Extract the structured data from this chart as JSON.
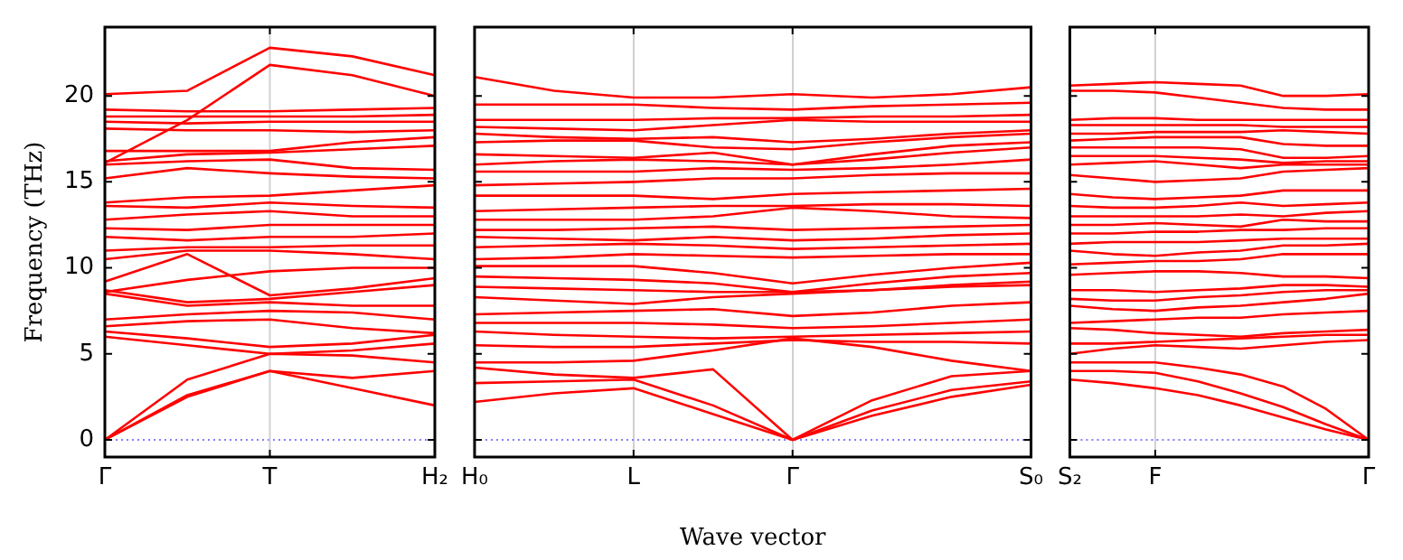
{
  "chart_data": [
    {
      "type": "line",
      "ylabel": "Frequency (THz)",
      "categories": [
        "Γ",
        null,
        "T",
        null,
        "H₂"
      ],
      "ylim": [
        -1,
        24
      ],
      "yticks": [
        0,
        5,
        10,
        15,
        20
      ],
      "ref_lines": [
        {
          "axis": "y",
          "value": 0,
          "label": null,
          "color": "#8080ff",
          "line_style": "dotted"
        },
        {
          "axis": "x",
          "value": "T",
          "label": null,
          "color": "#d0d0d0",
          "line_style": "solid"
        }
      ],
      "series": [
        {
          "color": "#ff0000",
          "values": [
            0,
            2.5,
            4.0,
            3.0,
            2.0
          ]
        },
        {
          "color": "#ff0000",
          "values": [
            0,
            2.6,
            4.0,
            3.6,
            4.0
          ]
        },
        {
          "color": "#ff0000",
          "values": [
            0,
            3.5,
            5.0,
            4.9,
            4.5
          ]
        },
        {
          "color": "#ff0000",
          "values": [
            6.0,
            5.5,
            5.0,
            5.2,
            5.6
          ]
        },
        {
          "color": "#ff0000",
          "values": [
            6.3,
            5.9,
            5.4,
            5.6,
            6.1
          ]
        },
        {
          "color": "#ff0000",
          "values": [
            6.6,
            6.9,
            7.0,
            6.5,
            6.2
          ]
        },
        {
          "color": "#ff0000",
          "values": [
            7.0,
            7.3,
            7.5,
            7.4,
            7.0
          ]
        },
        {
          "color": "#ff0000",
          "values": [
            8.5,
            7.8,
            8.0,
            7.8,
            7.8
          ]
        },
        {
          "color": "#ff0000",
          "values": [
            8.7,
            8.0,
            8.2,
            8.6,
            9.0
          ]
        },
        {
          "color": "#ff0000",
          "values": [
            9.2,
            10.8,
            8.4,
            8.8,
            9.4
          ]
        },
        {
          "color": "#ff0000",
          "values": [
            8.6,
            9.3,
            9.8,
            10.0,
            10.0
          ]
        },
        {
          "color": "#ff0000",
          "values": [
            10.5,
            11.0,
            11.0,
            10.8,
            10.5
          ]
        },
        {
          "color": "#ff0000",
          "values": [
            11.0,
            11.2,
            11.2,
            11.3,
            11.3
          ]
        },
        {
          "color": "#ff0000",
          "values": [
            11.8,
            11.6,
            11.8,
            11.8,
            12.0
          ]
        },
        {
          "color": "#ff0000",
          "values": [
            12.3,
            12.2,
            12.5,
            12.5,
            12.5
          ]
        },
        {
          "color": "#ff0000",
          "values": [
            12.8,
            13.1,
            13.3,
            13.0,
            13.0
          ]
        },
        {
          "color": "#ff0000",
          "values": [
            13.6,
            13.5,
            13.8,
            13.6,
            13.5
          ]
        },
        {
          "color": "#ff0000",
          "values": [
            13.8,
            14.1,
            14.2,
            14.5,
            14.8
          ]
        },
        {
          "color": "#ff0000",
          "values": [
            15.2,
            15.8,
            15.5,
            15.3,
            15.2
          ]
        },
        {
          "color": "#ff0000",
          "values": [
            16.0,
            16.2,
            16.3,
            15.8,
            15.7
          ]
        },
        {
          "color": "#ff0000",
          "values": [
            16.2,
            16.6,
            16.7,
            16.9,
            17.1
          ]
        },
        {
          "color": "#ff0000",
          "values": [
            16.1,
            18.6,
            21.8,
            21.2,
            20.0
          ]
        },
        {
          "color": "#ff0000",
          "values": [
            20.1,
            20.3,
            22.8,
            22.3,
            21.2
          ]
        },
        {
          "color": "#ff0000",
          "values": [
            16.8,
            16.8,
            16.8,
            17.3,
            17.6
          ]
        },
        {
          "color": "#ff0000",
          "values": [
            18.1,
            18.0,
            18.0,
            17.9,
            18.0
          ]
        },
        {
          "color": "#ff0000",
          "values": [
            18.5,
            18.4,
            18.5,
            18.5,
            18.5
          ]
        },
        {
          "color": "#ff0000",
          "values": [
            18.8,
            18.8,
            18.8,
            18.8,
            18.9
          ]
        },
        {
          "color": "#ff0000",
          "values": [
            19.2,
            19.1,
            19.1,
            19.2,
            19.3
          ]
        }
      ]
    },
    {
      "type": "line",
      "xlabel": "Wave vector",
      "categories": [
        "H₀",
        null,
        "L",
        null,
        "Γ",
        null,
        null,
        "S₀"
      ],
      "ylim": [
        -1,
        24
      ],
      "yticks": [
        0,
        5,
        10,
        15,
        20
      ],
      "tick_labels": "x",
      "grid": "x",
      "ref_lines": [
        {
          "axis": "y",
          "value": 0,
          "label": null,
          "color": "#8080ff",
          "line_style": "dotted"
        }
      ],
      "series": [
        {
          "color": "#ff0000",
          "values": [
            2.2,
            2.7,
            3.0,
            1.5,
            0,
            1.4,
            2.5,
            3.2
          ]
        },
        {
          "color": "#ff0000",
          "values": [
            3.3,
            3.4,
            3.5,
            2.0,
            0,
            1.7,
            2.9,
            3.4
          ]
        },
        {
          "color": "#ff0000",
          "values": [
            4.2,
            3.8,
            3.6,
            4.1,
            0,
            2.3,
            3.7,
            4.0
          ]
        },
        {
          "color": "#ff0000",
          "values": [
            4.5,
            4.5,
            4.6,
            5.2,
            5.9,
            5.4,
            4.6,
            4.0
          ]
        },
        {
          "color": "#ff0000",
          "values": [
            5.5,
            5.4,
            5.4,
            5.6,
            5.8,
            5.7,
            5.7,
            5.6
          ]
        },
        {
          "color": "#ff0000",
          "values": [
            6.3,
            6.1,
            6.0,
            5.9,
            6.0,
            6.1,
            6.2,
            6.3
          ]
        },
        {
          "color": "#ff0000",
          "values": [
            6.8,
            6.8,
            6.8,
            6.7,
            6.5,
            6.6,
            6.8,
            7.0
          ]
        },
        {
          "color": "#ff0000",
          "values": [
            7.3,
            7.4,
            7.5,
            7.6,
            7.2,
            7.4,
            7.8,
            8.0
          ]
        },
        {
          "color": "#ff0000",
          "values": [
            8.3,
            8.1,
            7.9,
            8.3,
            8.5,
            8.7,
            8.9,
            9.0
          ]
        },
        {
          "color": "#ff0000",
          "values": [
            8.9,
            8.8,
            8.7,
            8.6,
            8.6,
            8.7,
            9.0,
            9.2
          ]
        },
        {
          "color": "#ff0000",
          "values": [
            9.5,
            9.4,
            9.3,
            9.1,
            8.6,
            9.1,
            9.5,
            9.7
          ]
        },
        {
          "color": "#ff0000",
          "values": [
            10.1,
            10.1,
            10.1,
            9.7,
            9.1,
            9.6,
            10.0,
            10.3
          ]
        },
        {
          "color": "#ff0000",
          "values": [
            10.5,
            10.6,
            10.8,
            10.7,
            10.6,
            10.7,
            10.8,
            10.8
          ]
        },
        {
          "color": "#ff0000",
          "values": [
            11.2,
            11.3,
            11.4,
            11.3,
            11.1,
            11.2,
            11.3,
            11.4
          ]
        },
        {
          "color": "#ff0000",
          "values": [
            11.8,
            11.7,
            11.6,
            11.8,
            11.6,
            11.7,
            11.9,
            12.0
          ]
        },
        {
          "color": "#ff0000",
          "values": [
            12.2,
            12.2,
            12.3,
            12.4,
            12.2,
            12.3,
            12.4,
            12.5
          ]
        },
        {
          "color": "#ff0000",
          "values": [
            12.8,
            12.8,
            12.8,
            13.0,
            13.5,
            13.3,
            13.0,
            12.9
          ]
        },
        {
          "color": "#ff0000",
          "values": [
            13.3,
            13.4,
            13.5,
            13.6,
            13.6,
            13.7,
            13.7,
            13.6
          ]
        },
        {
          "color": "#ff0000",
          "values": [
            14.2,
            14.2,
            14.2,
            14.0,
            14.3,
            14.4,
            14.5,
            14.6
          ]
        },
        {
          "color": "#ff0000",
          "values": [
            14.8,
            14.9,
            15.0,
            15.2,
            15.2,
            15.4,
            15.5,
            15.5
          ]
        },
        {
          "color": "#ff0000",
          "values": [
            15.6,
            15.6,
            15.6,
            15.8,
            15.7,
            15.8,
            16.0,
            16.3
          ]
        },
        {
          "color": "#ff0000",
          "values": [
            16.0,
            16.2,
            16.3,
            16.2,
            16.0,
            16.3,
            16.7,
            17.0
          ]
        },
        {
          "color": "#ff0000",
          "values": [
            16.6,
            16.5,
            16.4,
            16.7,
            16.0,
            16.6,
            17.1,
            17.3
          ]
        },
        {
          "color": "#ff0000",
          "values": [
            17.3,
            17.4,
            17.4,
            17.0,
            16.9,
            17.3,
            17.6,
            17.8
          ]
        },
        {
          "color": "#ff0000",
          "values": [
            17.8,
            17.6,
            17.5,
            17.6,
            17.3,
            17.5,
            17.8,
            18.0
          ]
        },
        {
          "color": "#ff0000",
          "values": [
            18.2,
            18.1,
            18.0,
            18.3,
            18.6,
            18.5,
            18.5,
            18.5
          ]
        },
        {
          "color": "#ff0000",
          "values": [
            18.6,
            18.6,
            18.6,
            18.7,
            18.7,
            18.8,
            18.8,
            18.9
          ]
        },
        {
          "color": "#ff0000",
          "values": [
            19.5,
            19.5,
            19.5,
            19.3,
            19.2,
            19.4,
            19.5,
            19.6
          ]
        },
        {
          "color": "#ff0000",
          "values": [
            21.1,
            20.3,
            19.9,
            19.9,
            20.1,
            19.9,
            20.1,
            20.5
          ]
        }
      ]
    },
    {
      "type": "line",
      "categories": [
        "S₂",
        null,
        "F",
        null,
        null,
        null,
        null,
        "Γ"
      ],
      "ylim": [
        -1,
        24
      ],
      "yticks": [
        0,
        5,
        10,
        15,
        20
      ],
      "tick_labels": "x",
      "ref_lines": [
        {
          "axis": "y",
          "value": 0,
          "label": null,
          "color": "#8080ff",
          "line_style": "dotted"
        },
        {
          "axis": "x",
          "value": "F",
          "label": null,
          "color": "#d0d0d0",
          "line_style": "solid"
        }
      ],
      "series": [
        {
          "color": "#ff0000",
          "values": [
            3.5,
            3.3,
            3.0,
            2.6,
            2.0,
            1.3,
            0.6,
            0
          ]
        },
        {
          "color": "#ff0000",
          "values": [
            4.0,
            4.0,
            3.9,
            3.4,
            2.7,
            1.9,
            0.9,
            0
          ]
        },
        {
          "color": "#ff0000",
          "values": [
            4.5,
            4.5,
            4.5,
            4.2,
            3.8,
            3.1,
            1.8,
            0
          ]
        },
        {
          "color": "#ff0000",
          "values": [
            5.0,
            5.3,
            5.5,
            5.4,
            5.3,
            5.5,
            5.7,
            5.8
          ]
        },
        {
          "color": "#ff0000",
          "values": [
            5.6,
            5.6,
            5.7,
            5.8,
            5.9,
            6.0,
            6.1,
            6.1
          ]
        },
        {
          "color": "#ff0000",
          "values": [
            6.5,
            6.4,
            6.2,
            6.1,
            6.0,
            6.2,
            6.3,
            6.4
          ]
        },
        {
          "color": "#ff0000",
          "values": [
            6.8,
            6.9,
            7.0,
            7.1,
            7.1,
            7.3,
            7.4,
            7.5
          ]
        },
        {
          "color": "#ff0000",
          "values": [
            7.8,
            7.6,
            7.5,
            7.7,
            7.8,
            8.0,
            8.2,
            8.5
          ]
        },
        {
          "color": "#ff0000",
          "values": [
            8.2,
            8.1,
            8.1,
            8.3,
            8.4,
            8.6,
            8.7,
            8.7
          ]
        },
        {
          "color": "#ff0000",
          "values": [
            8.7,
            8.7,
            8.6,
            8.7,
            8.8,
            9.0,
            9.0,
            8.9
          ]
        },
        {
          "color": "#ff0000",
          "values": [
            9.6,
            9.7,
            9.8,
            9.8,
            9.7,
            9.5,
            9.5,
            9.4
          ]
        },
        {
          "color": "#ff0000",
          "values": [
            10.2,
            10.3,
            10.4,
            10.4,
            10.5,
            10.8,
            10.8,
            10.8
          ]
        },
        {
          "color": "#ff0000",
          "values": [
            11.0,
            10.8,
            10.7,
            10.9,
            11.0,
            11.3,
            11.3,
            11.4
          ]
        },
        {
          "color": "#ff0000",
          "values": [
            11.4,
            11.5,
            11.5,
            11.5,
            11.6,
            11.7,
            11.7,
            11.7
          ]
        },
        {
          "color": "#ff0000",
          "values": [
            12.0,
            12.0,
            12.1,
            12.1,
            12.2,
            12.2,
            12.3,
            12.3
          ]
        },
        {
          "color": "#ff0000",
          "values": [
            12.5,
            12.5,
            12.6,
            12.5,
            12.4,
            12.8,
            12.7,
            12.7
          ]
        },
        {
          "color": "#ff0000",
          "values": [
            13.0,
            13.0,
            13.0,
            13.0,
            13.1,
            13.0,
            13.2,
            13.3
          ]
        },
        {
          "color": "#ff0000",
          "values": [
            13.6,
            13.5,
            13.5,
            13.6,
            13.8,
            13.6,
            13.7,
            13.8
          ]
        },
        {
          "color": "#ff0000",
          "values": [
            14.3,
            14.1,
            14.0,
            14.1,
            14.2,
            14.5,
            14.5,
            14.5
          ]
        },
        {
          "color": "#ff0000",
          "values": [
            15.4,
            15.2,
            15.0,
            15.1,
            15.2,
            15.6,
            15.7,
            15.8
          ]
        },
        {
          "color": "#ff0000",
          "values": [
            16.0,
            16.1,
            16.2,
            16.0,
            15.8,
            16.0,
            16.0,
            16.0
          ]
        },
        {
          "color": "#ff0000",
          "values": [
            16.5,
            16.5,
            16.5,
            16.4,
            16.3,
            16.1,
            16.2,
            16.2
          ]
        },
        {
          "color": "#ff0000",
          "values": [
            17.0,
            17.0,
            17.0,
            17.0,
            16.9,
            16.4,
            16.4,
            16.5
          ]
        },
        {
          "color": "#ff0000",
          "values": [
            17.4,
            17.5,
            17.6,
            17.6,
            17.6,
            17.2,
            17.1,
            17.1
          ]
        },
        {
          "color": "#ff0000",
          "values": [
            17.8,
            17.8,
            17.9,
            17.9,
            17.9,
            18.0,
            17.9,
            17.8
          ]
        },
        {
          "color": "#ff0000",
          "values": [
            18.3,
            18.3,
            18.3,
            18.3,
            18.3,
            18.2,
            18.2,
            18.2
          ]
        },
        {
          "color": "#ff0000",
          "values": [
            18.6,
            18.7,
            18.7,
            18.6,
            18.6,
            18.6,
            18.6,
            18.6
          ]
        },
        {
          "color": "#ff0000",
          "values": [
            20.3,
            20.3,
            20.2,
            19.9,
            19.6,
            19.3,
            19.2,
            19.2
          ]
        },
        {
          "color": "#ff0000",
          "values": [
            20.6,
            20.7,
            20.8,
            20.7,
            20.6,
            20.0,
            20.0,
            20.1
          ]
        }
      ]
    }
  ]
}
